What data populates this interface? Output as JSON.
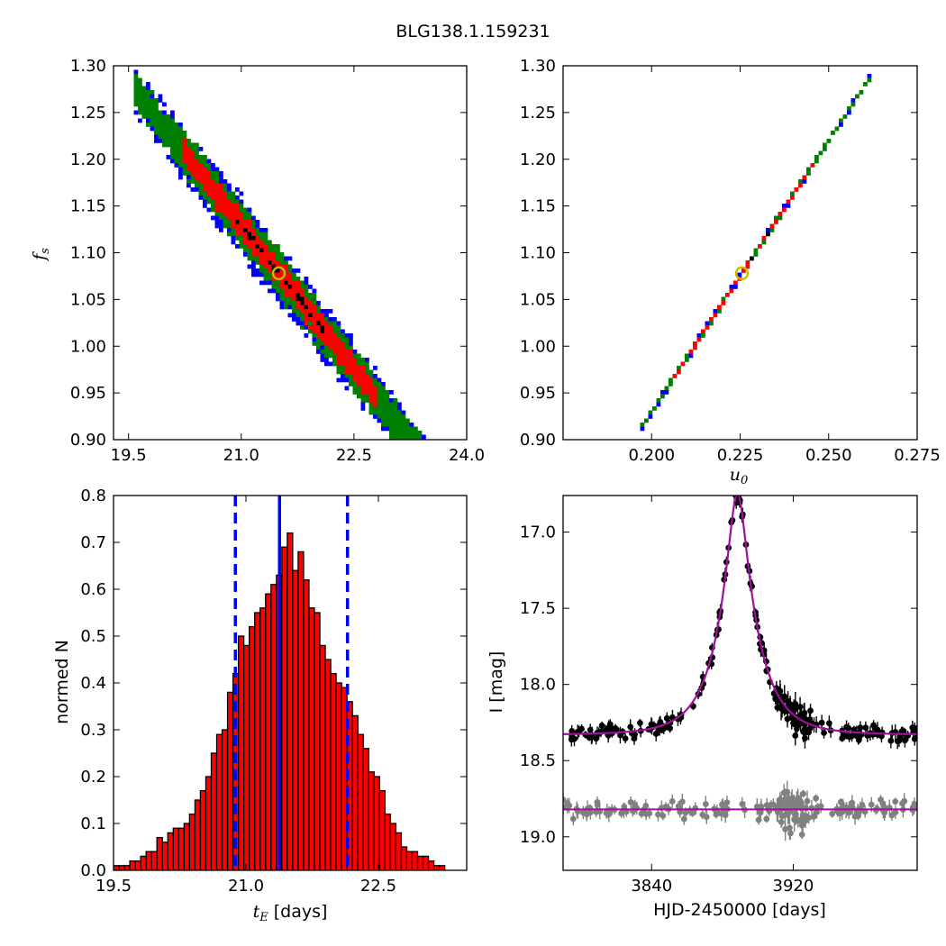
{
  "figure": {
    "title": "BLG138.1.159231"
  },
  "colors": {
    "sigma3": "#0000ff",
    "sigma2": "#008000",
    "sigma1": "#ff0000",
    "dense": "#000000",
    "marker": "#bfbf00",
    "model": "#a0109f",
    "residuals": "#808080",
    "hist_bar": "#ff0000",
    "hist_edge": "#000000",
    "median_line": "#0000ff"
  },
  "chart_data": [
    {
      "id": "tE-fs-density",
      "type": "heatmap",
      "xlabel": "",
      "ylabel_main": "f",
      "ylabel_sub": "s",
      "xlim": [
        19.3,
        24.0
      ],
      "ylim": [
        0.9,
        1.3
      ],
      "xticks": [
        19.5,
        21.0,
        22.5,
        24.0
      ],
      "xtick_labels": [
        "19.5",
        "21.0",
        "22.5",
        "24.0"
      ],
      "yticks": [
        0.9,
        0.95,
        1.0,
        1.05,
        1.1,
        1.15,
        1.2,
        1.25,
        1.3
      ],
      "ytick_labels": [
        "0.90",
        "0.95",
        "1.00",
        "1.05",
        "1.10",
        "1.15",
        "1.20",
        "1.25",
        "1.30"
      ],
      "ridge": {
        "x0": 21.5,
        "y0": 1.078,
        "slope": -0.102,
        "sigma1": 0.014,
        "sigma2": 0.024,
        "sigma3": 0.03,
        "xmin": 19.55,
        "xmax": 23.75
      },
      "best_fit": {
        "x": 21.5,
        "y": 1.078
      }
    },
    {
      "id": "u0-fs-density",
      "type": "heatmap",
      "xlabel_main": "u",
      "xlabel_sub": "0",
      "ylabel": "",
      "xlim": [
        0.175,
        0.275
      ],
      "ylim": [
        0.9,
        1.3
      ],
      "xticks": [
        0.2,
        0.225,
        0.25,
        0.275
      ],
      "xtick_labels": [
        "0.200",
        "0.225",
        "0.250",
        "0.275"
      ],
      "yticks": [
        0.9,
        0.95,
        1.0,
        1.05,
        1.1,
        1.15,
        1.2,
        1.25,
        1.3
      ],
      "ytick_labels": [
        "0.90",
        "0.95",
        "1.00",
        "1.05",
        "1.10",
        "1.15",
        "1.20",
        "1.25",
        "1.30"
      ],
      "ridge": {
        "x0": 0.2255,
        "y0": 1.078,
        "slope": 5.8,
        "sigma1": 0.0022,
        "sigma2": 0.0032,
        "sigma3": 0.0042,
        "xmin": 0.197,
        "xmax": 0.262
      },
      "best_fit": {
        "x": 0.2255,
        "y": 1.078
      }
    },
    {
      "id": "tE-histogram",
      "type": "bar",
      "xlabel_main": "t",
      "xlabel_sub": "E",
      "xlabel_unit": "[days]",
      "ylabel": "normed N",
      "xlim": [
        19.5,
        23.5
      ],
      "ylim": [
        0.0,
        0.8
      ],
      "xticks": [
        19.5,
        21.0,
        22.5
      ],
      "xtick_labels": [
        "19.5",
        "21.0",
        "22.5"
      ],
      "yticks": [
        0.0,
        0.1,
        0.2,
        0.3,
        0.4,
        0.5,
        0.6,
        0.7,
        0.8
      ],
      "ytick_labels": [
        "0.0",
        "0.1",
        "0.2",
        "0.3",
        "0.4",
        "0.5",
        "0.6",
        "0.7",
        "0.8"
      ],
      "bin_width": 0.0615,
      "bin_start": 19.5,
      "values": [
        0.01,
        0.01,
        0.01,
        0.02,
        0.02,
        0.03,
        0.04,
        0.04,
        0.07,
        0.06,
        0.08,
        0.09,
        0.09,
        0.1,
        0.12,
        0.15,
        0.17,
        0.2,
        0.25,
        0.29,
        0.3,
        0.38,
        0.42,
        0.5,
        0.48,
        0.52,
        0.55,
        0.56,
        0.59,
        0.61,
        0.63,
        0.69,
        0.72,
        0.64,
        0.68,
        0.62,
        0.56,
        0.55,
        0.48,
        0.45,
        0.42,
        0.4,
        0.39,
        0.36,
        0.33,
        0.29,
        0.26,
        0.21,
        0.2,
        0.17,
        0.12,
        0.1,
        0.08,
        0.05,
        0.04,
        0.04,
        0.03,
        0.03,
        0.02,
        0.01,
        0.01,
        0.0,
        0.0,
        0.0,
        0.0
      ],
      "median": 21.38,
      "lower": 20.88,
      "upper": 22.15
    },
    {
      "id": "light-curve",
      "type": "scatter",
      "xlabel": "HJD-2450000 [days]",
      "ylabel": "I [mag]",
      "xlim": [
        3790,
        3990
      ],
      "ylim": [
        19.22,
        16.76
      ],
      "xticks": [
        3840,
        3920
      ],
      "xtick_labels": [
        "3840",
        "3920"
      ],
      "yticks": [
        17.0,
        17.5,
        18.0,
        18.5,
        19.0
      ],
      "ytick_labels": [
        "17.0",
        "17.5",
        "18.0",
        "18.5",
        "19.0"
      ],
      "model": {
        "t0": 3888.5,
        "tE": 21.38,
        "u0": 0.2255,
        "baseline": 18.33,
        "peak": 16.75
      },
      "residual_baseline": 18.82
    }
  ]
}
